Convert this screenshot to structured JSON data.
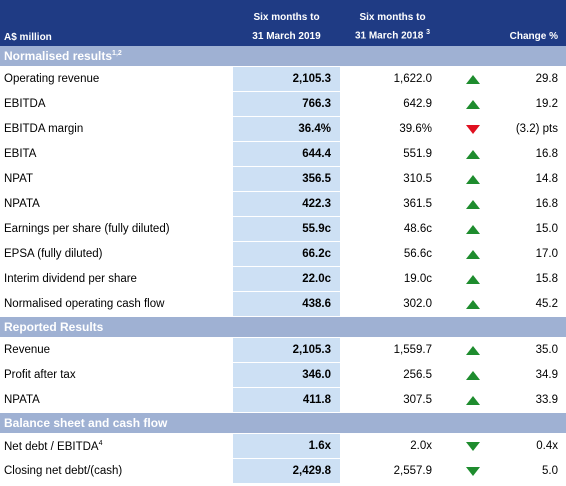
{
  "header": {
    "unit": "A$ million",
    "col1": [
      "Six months to",
      "31 March 2019"
    ],
    "col2": [
      "Six months to",
      "31 March 2018"
    ],
    "col2_note": "3",
    "col3": "Change %"
  },
  "sections": [
    {
      "title": "Normalised results",
      "note": "1,2",
      "rows": [
        {
          "label": "Operating revenue",
          "cur": "2,105.3",
          "prev": "1,622.0",
          "arrow": "up",
          "arrow_color": "#1e8c2e",
          "change": "29.8"
        },
        {
          "label": "EBITDA",
          "cur": "766.3",
          "prev": "642.9",
          "arrow": "up",
          "arrow_color": "#1e8c2e",
          "change": "19.2"
        },
        {
          "label": "EBITDA margin",
          "cur": "36.4%",
          "prev": "39.6%",
          "arrow": "down",
          "arrow_color": "#e01020",
          "change": "(3.2) pts"
        },
        {
          "label": "EBITA",
          "cur": "644.4",
          "prev": "551.9",
          "arrow": "up",
          "arrow_color": "#1e8c2e",
          "change": "16.8"
        },
        {
          "label": "NPAT",
          "cur": "356.5",
          "prev": "310.5",
          "arrow": "up",
          "arrow_color": "#1e8c2e",
          "change": "14.8"
        },
        {
          "label": "NPATA",
          "cur": "422.3",
          "prev": "361.5",
          "arrow": "up",
          "arrow_color": "#1e8c2e",
          "change": "16.8"
        },
        {
          "label": "Earnings per share (fully diluted)",
          "cur": "55.9c",
          "prev": "48.6c",
          "arrow": "up",
          "arrow_color": "#1e8c2e",
          "change": "15.0"
        },
        {
          "label": "EPSA (fully diluted)",
          "cur": "66.2c",
          "prev": "56.6c",
          "arrow": "up",
          "arrow_color": "#1e8c2e",
          "change": "17.0"
        },
        {
          "label": "Interim dividend per share",
          "cur": "22.0c",
          "prev": "19.0c",
          "arrow": "up",
          "arrow_color": "#1e8c2e",
          "change": "15.8"
        },
        {
          "label": "Normalised operating cash flow",
          "cur": "438.6",
          "prev": "302.0",
          "arrow": "up",
          "arrow_color": "#1e8c2e",
          "change": "45.2"
        }
      ]
    },
    {
      "title": "Reported Results",
      "rows": [
        {
          "label": "Revenue",
          "cur": "2,105.3",
          "prev": "1,559.7",
          "arrow": "up",
          "arrow_color": "#1e8c2e",
          "change": "35.0"
        },
        {
          "label": "Profit after tax",
          "cur": "346.0",
          "prev": "256.5",
          "arrow": "up",
          "arrow_color": "#1e8c2e",
          "change": "34.9"
        },
        {
          "label": "NPATA",
          "cur": "411.8",
          "prev": "307.5",
          "arrow": "up",
          "arrow_color": "#1e8c2e",
          "change": "33.9"
        }
      ]
    },
    {
      "title": "Balance sheet and cash flow",
      "rows": [
        {
          "label": "Net debt / EBITDA",
          "note": "4",
          "cur": "1.6x",
          "prev": "2.0x",
          "arrow": "down",
          "arrow_color": "#1e8c2e",
          "change": "0.4x"
        },
        {
          "label": "Closing net debt/(cash)",
          "cur": "2,429.8",
          "prev": "2,557.9",
          "arrow": "down",
          "arrow_color": "#1e8c2e",
          "change": "5.0"
        }
      ]
    }
  ]
}
